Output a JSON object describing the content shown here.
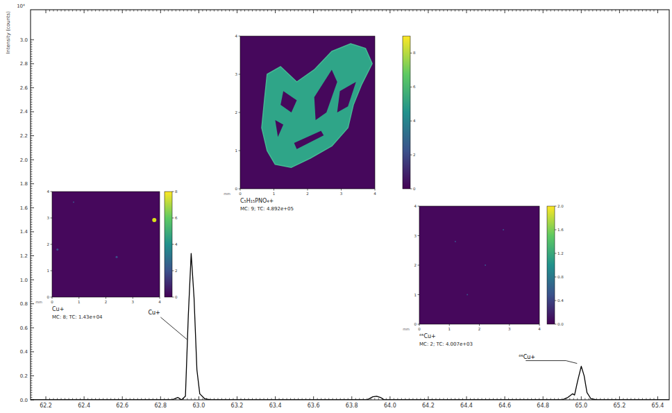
{
  "chart_data": {
    "type": "line",
    "ylabel": "Intensity (counts)",
    "y_multiplier": "10⁴",
    "x": [
      62.12,
      62.86,
      62.89,
      62.91,
      62.93,
      62.945,
      62.96,
      62.975,
      62.99,
      63.005,
      63.03,
      63.06,
      63.88,
      63.91,
      63.93,
      63.95,
      63.97,
      64.9,
      64.93,
      64.955,
      64.965,
      64.98,
      65.0,
      65.015,
      65.03,
      65.05,
      65.08,
      65.46
    ],
    "series": [
      {
        "color": "#000000",
        "values": [
          0,
          0,
          0.02,
          0,
          0.03,
          0.7,
          1.22,
          0.85,
          0.25,
          0.05,
          0.01,
          0,
          0,
          0.025,
          0.03,
          0.02,
          0,
          0,
          0.02,
          0.05,
          0.04,
          0.15,
          0.28,
          0.2,
          0.06,
          0.01,
          0,
          0
        ]
      }
    ],
    "xlim": [
      62.12,
      65.46
    ],
    "ylim": [
      0,
      3.25
    ],
    "xticks": [
      62.2,
      62.4,
      62.6,
      62.8,
      {
        "value": 63,
        "label": "63.0"
      },
      63.2,
      63.4,
      63.6,
      63.8,
      {
        "value": 64,
        "label": "64.0"
      },
      64.2,
      64.4,
      64.6,
      64.8,
      {
        "value": 65,
        "label": "65.0"
      },
      65.2,
      65.4
    ],
    "yticks": [
      {
        "value": 0,
        "label": "0.0"
      },
      0.2,
      0.4,
      0.6,
      0.8,
      {
        "value": 1,
        "label": "1.0"
      },
      1.2,
      1.4,
      1.6,
      1.8,
      {
        "value": 2,
        "label": "2.0"
      },
      2.2,
      2.4,
      2.6,
      2.8,
      {
        "value": 3,
        "label": "3.0"
      }
    ],
    "grid": false,
    "annotations": [
      {
        "text": "Cu+",
        "x": 62.96,
        "y": 1.22
      },
      {
        "text": "⁶⁵Cu+",
        "x": 65.0,
        "y": 0.28
      }
    ],
    "insets": [
      {
        "title": "Cu+",
        "info": "MC: 8; TC: 1.43e+04",
        "unit": "mm",
        "xticks": [
          0,
          1,
          2,
          3,
          4
        ],
        "yticks": [
          0,
          1,
          2,
          3,
          4
        ],
        "colorbar": {
          "range": [
            0,
            8
          ],
          "ticks": [
            0,
            2,
            4,
            6,
            8
          ]
        }
      },
      {
        "title": "C₅H₁₅PNO₄+",
        "info": "MC: 9; TC: 4.892e+05",
        "unit": "mm",
        "xticks": [
          0,
          1,
          2,
          3,
          4
        ],
        "yticks": [
          0,
          1,
          2,
          3,
          4
        ],
        "colorbar": {
          "range": [
            0,
            9
          ],
          "ticks": [
            0,
            2,
            4,
            6,
            8
          ]
        }
      },
      {
        "title": "⁶⁵Cu+",
        "info": "MC: 2; TC: 4.007e+03",
        "unit": "mm",
        "xticks": [
          0,
          1,
          2,
          3,
          4
        ],
        "yticks": [
          0,
          1,
          2,
          3,
          4
        ],
        "colorbar": {
          "range": [
            0,
            2
          ],
          "ticks": [
            {
              "value": 0,
              "label": "0.0"
            },
            0.4,
            0.8,
            1.2,
            1.6,
            {
              "value": 2,
              "label": "2.0"
            }
          ]
        }
      }
    ]
  }
}
